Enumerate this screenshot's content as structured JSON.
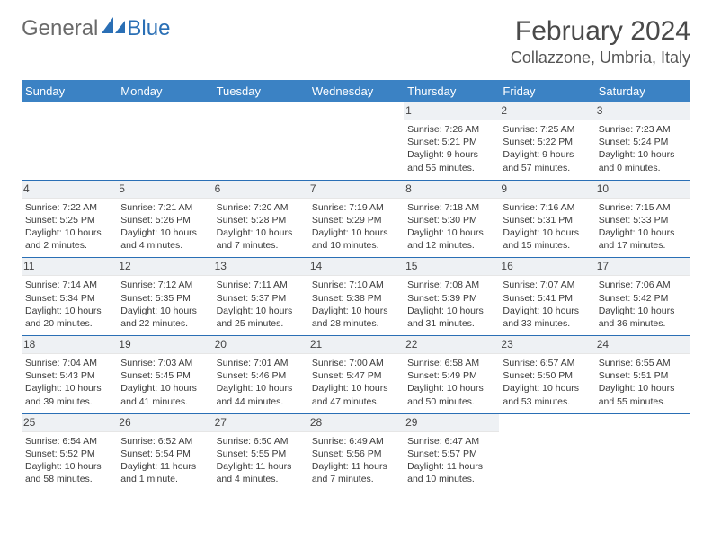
{
  "brand": {
    "part1": "General",
    "part2": "Blue"
  },
  "title": "February 2024",
  "location": "Collazzone, Umbria, Italy",
  "colors": {
    "header_bg": "#3b82c4",
    "header_fg": "#ffffff",
    "daynum_bg": "#eef1f4",
    "rule": "#2a6fb5",
    "brand_blue": "#2a6fb5",
    "brand_gray": "#6a6a6a"
  },
  "typography": {
    "title_fontsize": 30,
    "location_fontsize": 18,
    "dayheader_fontsize": 13,
    "daynum_fontsize": 12,
    "body_fontsize": 10.5
  },
  "day_headers": [
    "Sunday",
    "Monday",
    "Tuesday",
    "Wednesday",
    "Thursday",
    "Friday",
    "Saturday"
  ],
  "weeks": [
    [
      {},
      {},
      {},
      {},
      {
        "n": "1",
        "sunrise": "7:26 AM",
        "sunset": "5:21 PM",
        "daylight": "9 hours and 55 minutes."
      },
      {
        "n": "2",
        "sunrise": "7:25 AM",
        "sunset": "5:22 PM",
        "daylight": "9 hours and 57 minutes."
      },
      {
        "n": "3",
        "sunrise": "7:23 AM",
        "sunset": "5:24 PM",
        "daylight": "10 hours and 0 minutes."
      }
    ],
    [
      {
        "n": "4",
        "sunrise": "7:22 AM",
        "sunset": "5:25 PM",
        "daylight": "10 hours and 2 minutes."
      },
      {
        "n": "5",
        "sunrise": "7:21 AM",
        "sunset": "5:26 PM",
        "daylight": "10 hours and 4 minutes."
      },
      {
        "n": "6",
        "sunrise": "7:20 AM",
        "sunset": "5:28 PM",
        "daylight": "10 hours and 7 minutes."
      },
      {
        "n": "7",
        "sunrise": "7:19 AM",
        "sunset": "5:29 PM",
        "daylight": "10 hours and 10 minutes."
      },
      {
        "n": "8",
        "sunrise": "7:18 AM",
        "sunset": "5:30 PM",
        "daylight": "10 hours and 12 minutes."
      },
      {
        "n": "9",
        "sunrise": "7:16 AM",
        "sunset": "5:31 PM",
        "daylight": "10 hours and 15 minutes."
      },
      {
        "n": "10",
        "sunrise": "7:15 AM",
        "sunset": "5:33 PM",
        "daylight": "10 hours and 17 minutes."
      }
    ],
    [
      {
        "n": "11",
        "sunrise": "7:14 AM",
        "sunset": "5:34 PM",
        "daylight": "10 hours and 20 minutes."
      },
      {
        "n": "12",
        "sunrise": "7:12 AM",
        "sunset": "5:35 PM",
        "daylight": "10 hours and 22 minutes."
      },
      {
        "n": "13",
        "sunrise": "7:11 AM",
        "sunset": "5:37 PM",
        "daylight": "10 hours and 25 minutes."
      },
      {
        "n": "14",
        "sunrise": "7:10 AM",
        "sunset": "5:38 PM",
        "daylight": "10 hours and 28 minutes."
      },
      {
        "n": "15",
        "sunrise": "7:08 AM",
        "sunset": "5:39 PM",
        "daylight": "10 hours and 31 minutes."
      },
      {
        "n": "16",
        "sunrise": "7:07 AM",
        "sunset": "5:41 PM",
        "daylight": "10 hours and 33 minutes."
      },
      {
        "n": "17",
        "sunrise": "7:06 AM",
        "sunset": "5:42 PM",
        "daylight": "10 hours and 36 minutes."
      }
    ],
    [
      {
        "n": "18",
        "sunrise": "7:04 AM",
        "sunset": "5:43 PM",
        "daylight": "10 hours and 39 minutes."
      },
      {
        "n": "19",
        "sunrise": "7:03 AM",
        "sunset": "5:45 PM",
        "daylight": "10 hours and 41 minutes."
      },
      {
        "n": "20",
        "sunrise": "7:01 AM",
        "sunset": "5:46 PM",
        "daylight": "10 hours and 44 minutes."
      },
      {
        "n": "21",
        "sunrise": "7:00 AM",
        "sunset": "5:47 PM",
        "daylight": "10 hours and 47 minutes."
      },
      {
        "n": "22",
        "sunrise": "6:58 AM",
        "sunset": "5:49 PM",
        "daylight": "10 hours and 50 minutes."
      },
      {
        "n": "23",
        "sunrise": "6:57 AM",
        "sunset": "5:50 PM",
        "daylight": "10 hours and 53 minutes."
      },
      {
        "n": "24",
        "sunrise": "6:55 AM",
        "sunset": "5:51 PM",
        "daylight": "10 hours and 55 minutes."
      }
    ],
    [
      {
        "n": "25",
        "sunrise": "6:54 AM",
        "sunset": "5:52 PM",
        "daylight": "10 hours and 58 minutes."
      },
      {
        "n": "26",
        "sunrise": "6:52 AM",
        "sunset": "5:54 PM",
        "daylight": "11 hours and 1 minute."
      },
      {
        "n": "27",
        "sunrise": "6:50 AM",
        "sunset": "5:55 PM",
        "daylight": "11 hours and 4 minutes."
      },
      {
        "n": "28",
        "sunrise": "6:49 AM",
        "sunset": "5:56 PM",
        "daylight": "11 hours and 7 minutes."
      },
      {
        "n": "29",
        "sunrise": "6:47 AM",
        "sunset": "5:57 PM",
        "daylight": "11 hours and 10 minutes."
      },
      {},
      {}
    ]
  ],
  "labels": {
    "sunrise": "Sunrise:",
    "sunset": "Sunset:",
    "daylight": "Daylight:"
  }
}
